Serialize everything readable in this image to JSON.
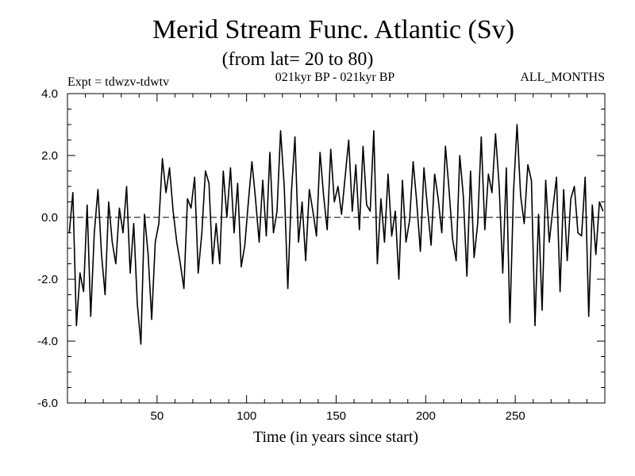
{
  "chart_data": {
    "type": "line",
    "title": "Merid Stream Func. Atlantic (Sv)",
    "subtitle": "(from lat= 20 to 80)",
    "annotations": {
      "left": "Expt = tdwzv-tdwtv",
      "center": "021kyr BP - 021kyr BP",
      "right": "ALL_MONTHS"
    },
    "xlabel": "Time (in years since start)",
    "ylabel": "",
    "xlim": [
      0,
      300
    ],
    "ylim": [
      -6.0,
      4.0
    ],
    "x_ticks": [
      50,
      100,
      150,
      200,
      250
    ],
    "y_ticks": [
      "-6.0",
      "-4.0",
      "-2.0",
      "0.0",
      "2.0",
      "4.0"
    ],
    "reference_line": {
      "y": 0.0,
      "style": "dashed"
    },
    "series": [
      {
        "name": "Merid Stream Func.",
        "x": [
          1,
          3,
          5,
          7,
          9,
          11,
          13,
          15,
          17,
          19,
          21,
          23,
          25,
          27,
          29,
          31,
          33,
          35,
          37,
          39,
          41,
          43,
          45,
          47,
          49,
          51,
          53,
          55,
          57,
          59,
          61,
          63,
          65,
          67,
          69,
          71,
          73,
          75,
          77,
          79,
          81,
          83,
          85,
          87,
          89,
          91,
          93,
          95,
          97,
          99,
          101,
          103,
          105,
          107,
          109,
          111,
          113,
          115,
          117,
          119,
          121,
          123,
          125,
          127,
          129,
          131,
          133,
          135,
          137,
          139,
          141,
          143,
          145,
          147,
          149,
          151,
          153,
          155,
          157,
          159,
          161,
          163,
          165,
          167,
          169,
          171,
          173,
          175,
          177,
          179,
          181,
          183,
          185,
          187,
          189,
          191,
          193,
          195,
          197,
          199,
          201,
          203,
          205,
          207,
          209,
          211,
          213,
          215,
          217,
          219,
          221,
          223,
          225,
          227,
          229,
          231,
          233,
          235,
          237,
          239,
          241,
          243,
          245,
          247,
          249,
          251,
          253,
          255,
          257,
          259,
          261,
          263,
          265,
          267,
          269,
          271,
          273,
          275,
          277,
          279,
          281,
          283,
          285,
          287,
          289,
          291,
          293,
          295,
          297,
          299
        ],
        "values": [
          -0.5,
          0.8,
          -3.5,
          -1.8,
          -2.4,
          0.4,
          -3.2,
          -0.5,
          0.9,
          -1.2,
          -2.5,
          0.5,
          -0.8,
          -1.5,
          0.3,
          -0.5,
          1.0,
          -1.8,
          -0.2,
          -2.8,
          -4.1,
          0.1,
          -1.2,
          -3.3,
          -0.8,
          -0.2,
          1.9,
          0.8,
          1.6,
          0.2,
          -0.8,
          -1.5,
          -2.3,
          0.6,
          0.3,
          1.3,
          -1.8,
          -0.5,
          1.5,
          1.1,
          -1.5,
          -0.2,
          -1.5,
          1.5,
          0.0,
          1.6,
          -0.5,
          1.1,
          -1.6,
          -0.9,
          0.5,
          1.8,
          0.6,
          -0.8,
          1.2,
          -0.6,
          2.1,
          -0.5,
          0.2,
          2.8,
          1.0,
          -2.3,
          0.8,
          2.6,
          -0.8,
          0.5,
          -1.4,
          0.9,
          0.2,
          -0.6,
          2.1,
          0.7,
          -0.4,
          2.2,
          0.5,
          1.0,
          0.1,
          1.3,
          2.5,
          0.2,
          1.7,
          -0.4,
          2.3,
          0.4,
          0.2,
          2.8,
          -1.5,
          0.6,
          -0.8,
          1.4,
          -0.6,
          0.2,
          -2.0,
          1.2,
          -0.8,
          -0.1,
          1.8,
          0.5,
          -1.1,
          1.6,
          0.3,
          -0.9,
          1.4,
          0.6,
          -0.5,
          2.3,
          0.9,
          -0.7,
          -1.4,
          2.0,
          0.7,
          -1.9,
          1.5,
          -1.3,
          -0.2,
          2.6,
          -0.4,
          1.4,
          0.8,
          2.7,
          1.0,
          -1.8,
          1.6,
          -3.4,
          0.8,
          3.0,
          0.7,
          -0.2,
          1.7,
          1.2,
          -3.5,
          0.1,
          -3.0,
          1.2,
          -0.8,
          0.3,
          1.3,
          -2.4,
          0.9,
          -1.4,
          0.6,
          1.0,
          -0.5,
          -0.6,
          1.3,
          -3.2,
          0.4,
          -1.2,
          0.5,
          0.2
        ]
      }
    ]
  }
}
